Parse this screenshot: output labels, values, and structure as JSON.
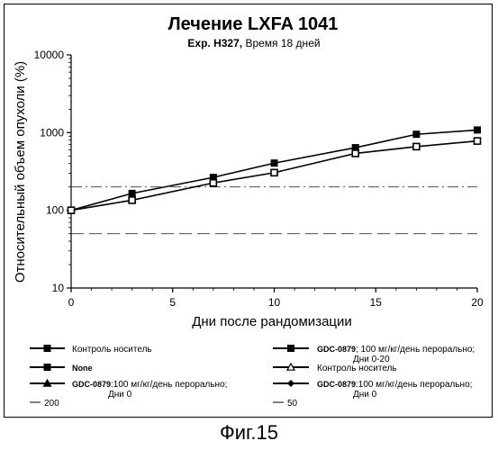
{
  "chart_data": {
    "type": "line",
    "title": "Лечение LXFA 1041",
    "subtitle_bold": "Exp. H327,",
    "subtitle_rest": " Время 18 дней",
    "xlabel": "Дни после рандомизации",
    "ylabel": "Относительный объем опухоли (%)",
    "y_scale": "log",
    "xlim": [
      0,
      20
    ],
    "ylim": [
      10,
      10000
    ],
    "x_ticks": [
      "0",
      "5",
      "10",
      "15",
      "20"
    ],
    "y_ticks": [
      "10",
      "100",
      "1000",
      "10000"
    ],
    "series": [
      {
        "name": "Контроль носитель",
        "marker": "square-filled",
        "x": [
          0,
          3,
          7,
          10,
          14,
          17,
          20
        ],
        "y": [
          100,
          165,
          265,
          405,
          640,
          950,
          1080
        ]
      },
      {
        "name": "GDC-0879: 100 мг/кг/день перорально; Дни 0-20",
        "marker": "square-open",
        "x": [
          0,
          3,
          7,
          10,
          14,
          17,
          20
        ],
        "y": [
          100,
          135,
          225,
          305,
          540,
          660,
          780
        ]
      }
    ],
    "reference_lines": [
      {
        "name": "200",
        "y": 200,
        "style": "dash-dot"
      },
      {
        "name": "50",
        "y": 50,
        "style": "long-dash"
      }
    ]
  },
  "legend": [
    {
      "marker": "square-filled",
      "bold": "",
      "text": "Контроль носитель",
      "line2": ""
    },
    {
      "marker": "square-filled",
      "bold": "GDC-0879",
      "text": "; 100 мг/кг/день перорально;",
      "line2": "Дни 0-20"
    },
    {
      "marker": "square-filled",
      "bold": "None",
      "text": "",
      "line2": ""
    },
    {
      "marker": "triangle-open",
      "bold": "",
      "text": "Контроль носитель",
      "line2": ""
    },
    {
      "marker": "triangle-filled",
      "bold": "GDC-0879",
      "text": ":100 мг/кг/день перорально;",
      "line2": "Дни 0"
    },
    {
      "marker": "diamond-filled",
      "bold": "GDC-0879",
      "text": ":100 мг/кг/день перорально;",
      "line2": "Дни 0"
    },
    {
      "marker": "dash-dot",
      "bold": "",
      "text": "200",
      "line2": ""
    },
    {
      "marker": "long-dash",
      "bold": "",
      "text": "50",
      "line2": ""
    }
  ],
  "figure_caption": "Фиг.15"
}
